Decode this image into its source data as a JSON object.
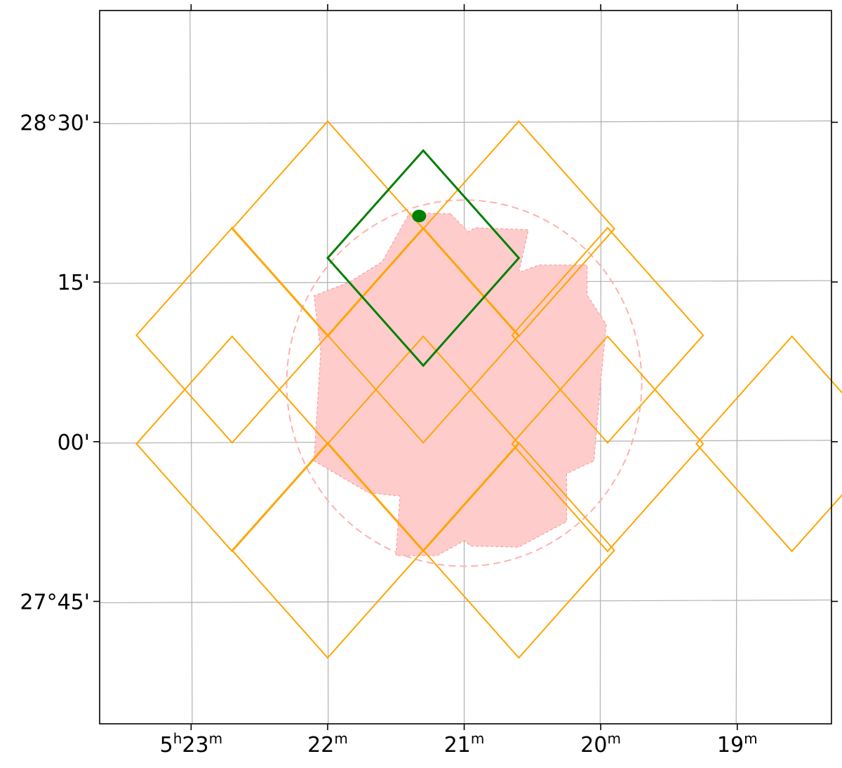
{
  "chart_data": {
    "type": "scatter",
    "projection": "sky coordinates (RA horizontal, Dec vertical), RA increasing to the left",
    "grid": true,
    "x_axis": {
      "quantity": "right ascension",
      "unit": "minutes of time (5h offset)",
      "ticks": [
        {
          "value": 23,
          "hours": "5",
          "h_mark": "h",
          "minutes": "23",
          "m_mark": "m"
        },
        {
          "value": 22,
          "hours": "",
          "h_mark": "",
          "minutes": "22",
          "m_mark": "m"
        },
        {
          "value": 21,
          "hours": "",
          "h_mark": "",
          "minutes": "21",
          "m_mark": "m"
        },
        {
          "value": 20,
          "hours": "",
          "h_mark": "",
          "minutes": "20",
          "m_mark": "m"
        },
        {
          "value": 19,
          "hours": "",
          "h_mark": "",
          "minutes": "19",
          "m_mark": "m"
        }
      ],
      "range": [
        23.67,
        18.31
      ]
    },
    "y_axis": {
      "quantity": "declination",
      "unit": "arcminutes (28° offset)",
      "ticks": [
        {
          "value": 30,
          "label": "28°30'"
        },
        {
          "value": 15,
          "label": "15'"
        },
        {
          "value": 0,
          "label": "00'"
        },
        {
          "value": -15,
          "label": "27°45'"
        }
      ],
      "range": [
        -26.5,
        40.5
      ]
    },
    "tiles": {
      "color": "#FFA500",
      "centers": [
        [
          22.0,
          20.0
        ],
        [
          20.6,
          20.0
        ],
        [
          22.7,
          10.0
        ],
        [
          21.3,
          10.0
        ],
        [
          19.95,
          10.0
        ],
        [
          22.7,
          -0.2
        ],
        [
          21.3,
          -0.2
        ],
        [
          19.95,
          -0.2
        ],
        [
          18.6,
          -0.2
        ],
        [
          22.0,
          -10.2
        ],
        [
          20.6,
          -10.2
        ]
      ],
      "half_width_x": 0.7,
      "half_height_y": 10.1
    },
    "highlighted_tile": {
      "color": "#008000",
      "center": [
        21.3,
        17.25
      ],
      "half_width_x": 0.7,
      "half_height_y": 10.1
    },
    "target_point": {
      "color": "#008000",
      "x": 21.33,
      "y": 21.2
    },
    "footprint_region": {
      "fill": "#FFCCCC",
      "stroke": "#F5A0A0",
      "vertices": [
        [
          21.1,
          21.4
        ],
        [
          21.4,
          21.5
        ],
        [
          21.6,
          16.9
        ],
        [
          21.84,
          15.0
        ],
        [
          22.1,
          13.7
        ],
        [
          22.05,
          8.5
        ],
        [
          22.1,
          -1.8
        ],
        [
          21.7,
          -4.8
        ],
        [
          21.47,
          -5.1
        ],
        [
          21.5,
          -10.7
        ],
        [
          21.2,
          -10.7
        ],
        [
          21.0,
          -9.3
        ],
        [
          20.95,
          -9.8
        ],
        [
          20.6,
          -9.9
        ],
        [
          20.25,
          -7.5
        ],
        [
          20.25,
          -3.0
        ],
        [
          20.05,
          -1.8
        ],
        [
          20.0,
          5.6
        ],
        [
          19.96,
          11.0
        ],
        [
          20.1,
          13.8
        ],
        [
          20.1,
          16.6
        ],
        [
          20.45,
          16.6
        ],
        [
          20.6,
          15.9
        ],
        [
          20.53,
          19.9
        ],
        [
          20.92,
          20.1
        ],
        [
          20.97,
          19.7
        ]
      ]
    },
    "search_circle": {
      "color": "#FFB0B0",
      "center_x": 21.0,
      "center_y": 5.5,
      "radius_x": 1.3,
      "radius_y": 17.2
    }
  }
}
